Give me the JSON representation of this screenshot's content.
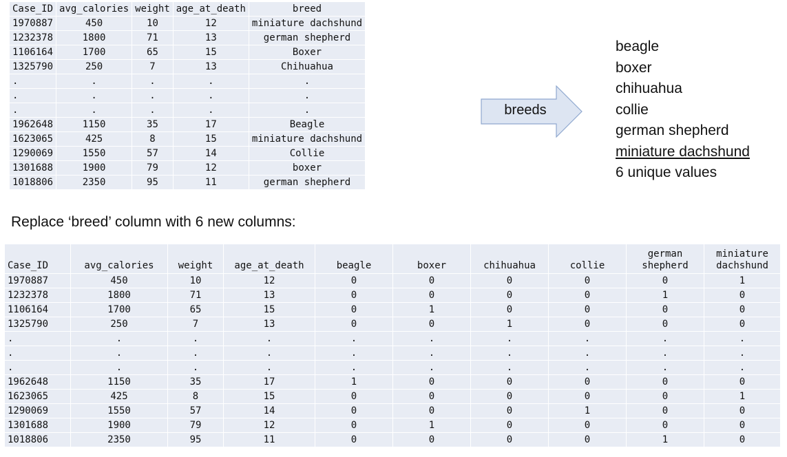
{
  "top_table": {
    "headers": [
      "Case_ID",
      "avg_calories",
      "weight",
      "age_at_death",
      "breed"
    ],
    "rows": [
      [
        "1970887",
        "450",
        "10",
        "12",
        "miniature dachshund"
      ],
      [
        "1232378",
        "1800",
        "71",
        "13",
        "german shepherd"
      ],
      [
        "1106164",
        "1700",
        "65",
        "15",
        "Boxer"
      ],
      [
        "1325790",
        "250",
        "7",
        "13",
        "Chihuahua"
      ],
      [
        ".",
        ".",
        ".",
        ".",
        "."
      ],
      [
        ".",
        ".",
        ".",
        ".",
        "."
      ],
      [
        ".",
        ".",
        ".",
        ".",
        "."
      ],
      [
        "1962648",
        "1150",
        "35",
        "17",
        "Beagle"
      ],
      [
        "1623065",
        "425",
        "8",
        "15",
        "miniature dachshund"
      ],
      [
        "1290069",
        "1550",
        "57",
        "14",
        "Collie"
      ],
      [
        "1301688",
        "1900",
        "79",
        "12",
        "boxer"
      ],
      [
        "1018806",
        "2350",
        "95",
        "11",
        "german shepherd"
      ]
    ]
  },
  "arrow": {
    "label": "breeds",
    "fill": "#dde5f2",
    "stroke": "#8fa8cf"
  },
  "breeds_list": [
    "beagle",
    "boxer",
    "chihuahua",
    "collie",
    "german shepherd",
    "miniature dachshund"
  ],
  "unique_note": "6 unique values",
  "caption": "Replace ‘breed’ column with 6 new columns:",
  "bottom_table": {
    "headers": [
      [
        "Case_ID"
      ],
      [
        "avg_calories"
      ],
      [
        "weight"
      ],
      [
        "age_at_death"
      ],
      [
        "beagle"
      ],
      [
        "boxer"
      ],
      [
        "chihuahua"
      ],
      [
        "collie"
      ],
      [
        "german",
        "shepherd"
      ],
      [
        "miniature",
        "dachshund"
      ]
    ],
    "rows": [
      [
        "1970887",
        "450",
        "10",
        "12",
        "0",
        "0",
        "0",
        "0",
        "0",
        "1"
      ],
      [
        "1232378",
        "1800",
        "71",
        "13",
        "0",
        "0",
        "0",
        "0",
        "1",
        "0"
      ],
      [
        "1106164",
        "1700",
        "65",
        "15",
        "0",
        "1",
        "0",
        "0",
        "0",
        "0"
      ],
      [
        "1325790",
        "250",
        "7",
        "13",
        "0",
        "0",
        "1",
        "0",
        "0",
        "0"
      ],
      [
        ".",
        ".",
        ".",
        ".",
        ".",
        ".",
        ".",
        ".",
        ".",
        "."
      ],
      [
        ".",
        ".",
        ".",
        ".",
        ".",
        ".",
        ".",
        ".",
        ".",
        "."
      ],
      [
        ".",
        ".",
        ".",
        ".",
        ".",
        ".",
        ".",
        ".",
        ".",
        "."
      ],
      [
        "1962648",
        "1150",
        "35",
        "17",
        "1",
        "0",
        "0",
        "0",
        "0",
        "0"
      ],
      [
        "1623065",
        "425",
        "8",
        "15",
        "0",
        "0",
        "0",
        "0",
        "0",
        "1"
      ],
      [
        "1290069",
        "1550",
        "57",
        "14",
        "0",
        "0",
        "0",
        "1",
        "0",
        "0"
      ],
      [
        "1301688",
        "1900",
        "79",
        "12",
        "0",
        "1",
        "0",
        "0",
        "0",
        "0"
      ],
      [
        "1018806",
        "2350",
        "95",
        "11",
        "0",
        "0",
        "0",
        "0",
        "1",
        "0"
      ]
    ]
  }
}
